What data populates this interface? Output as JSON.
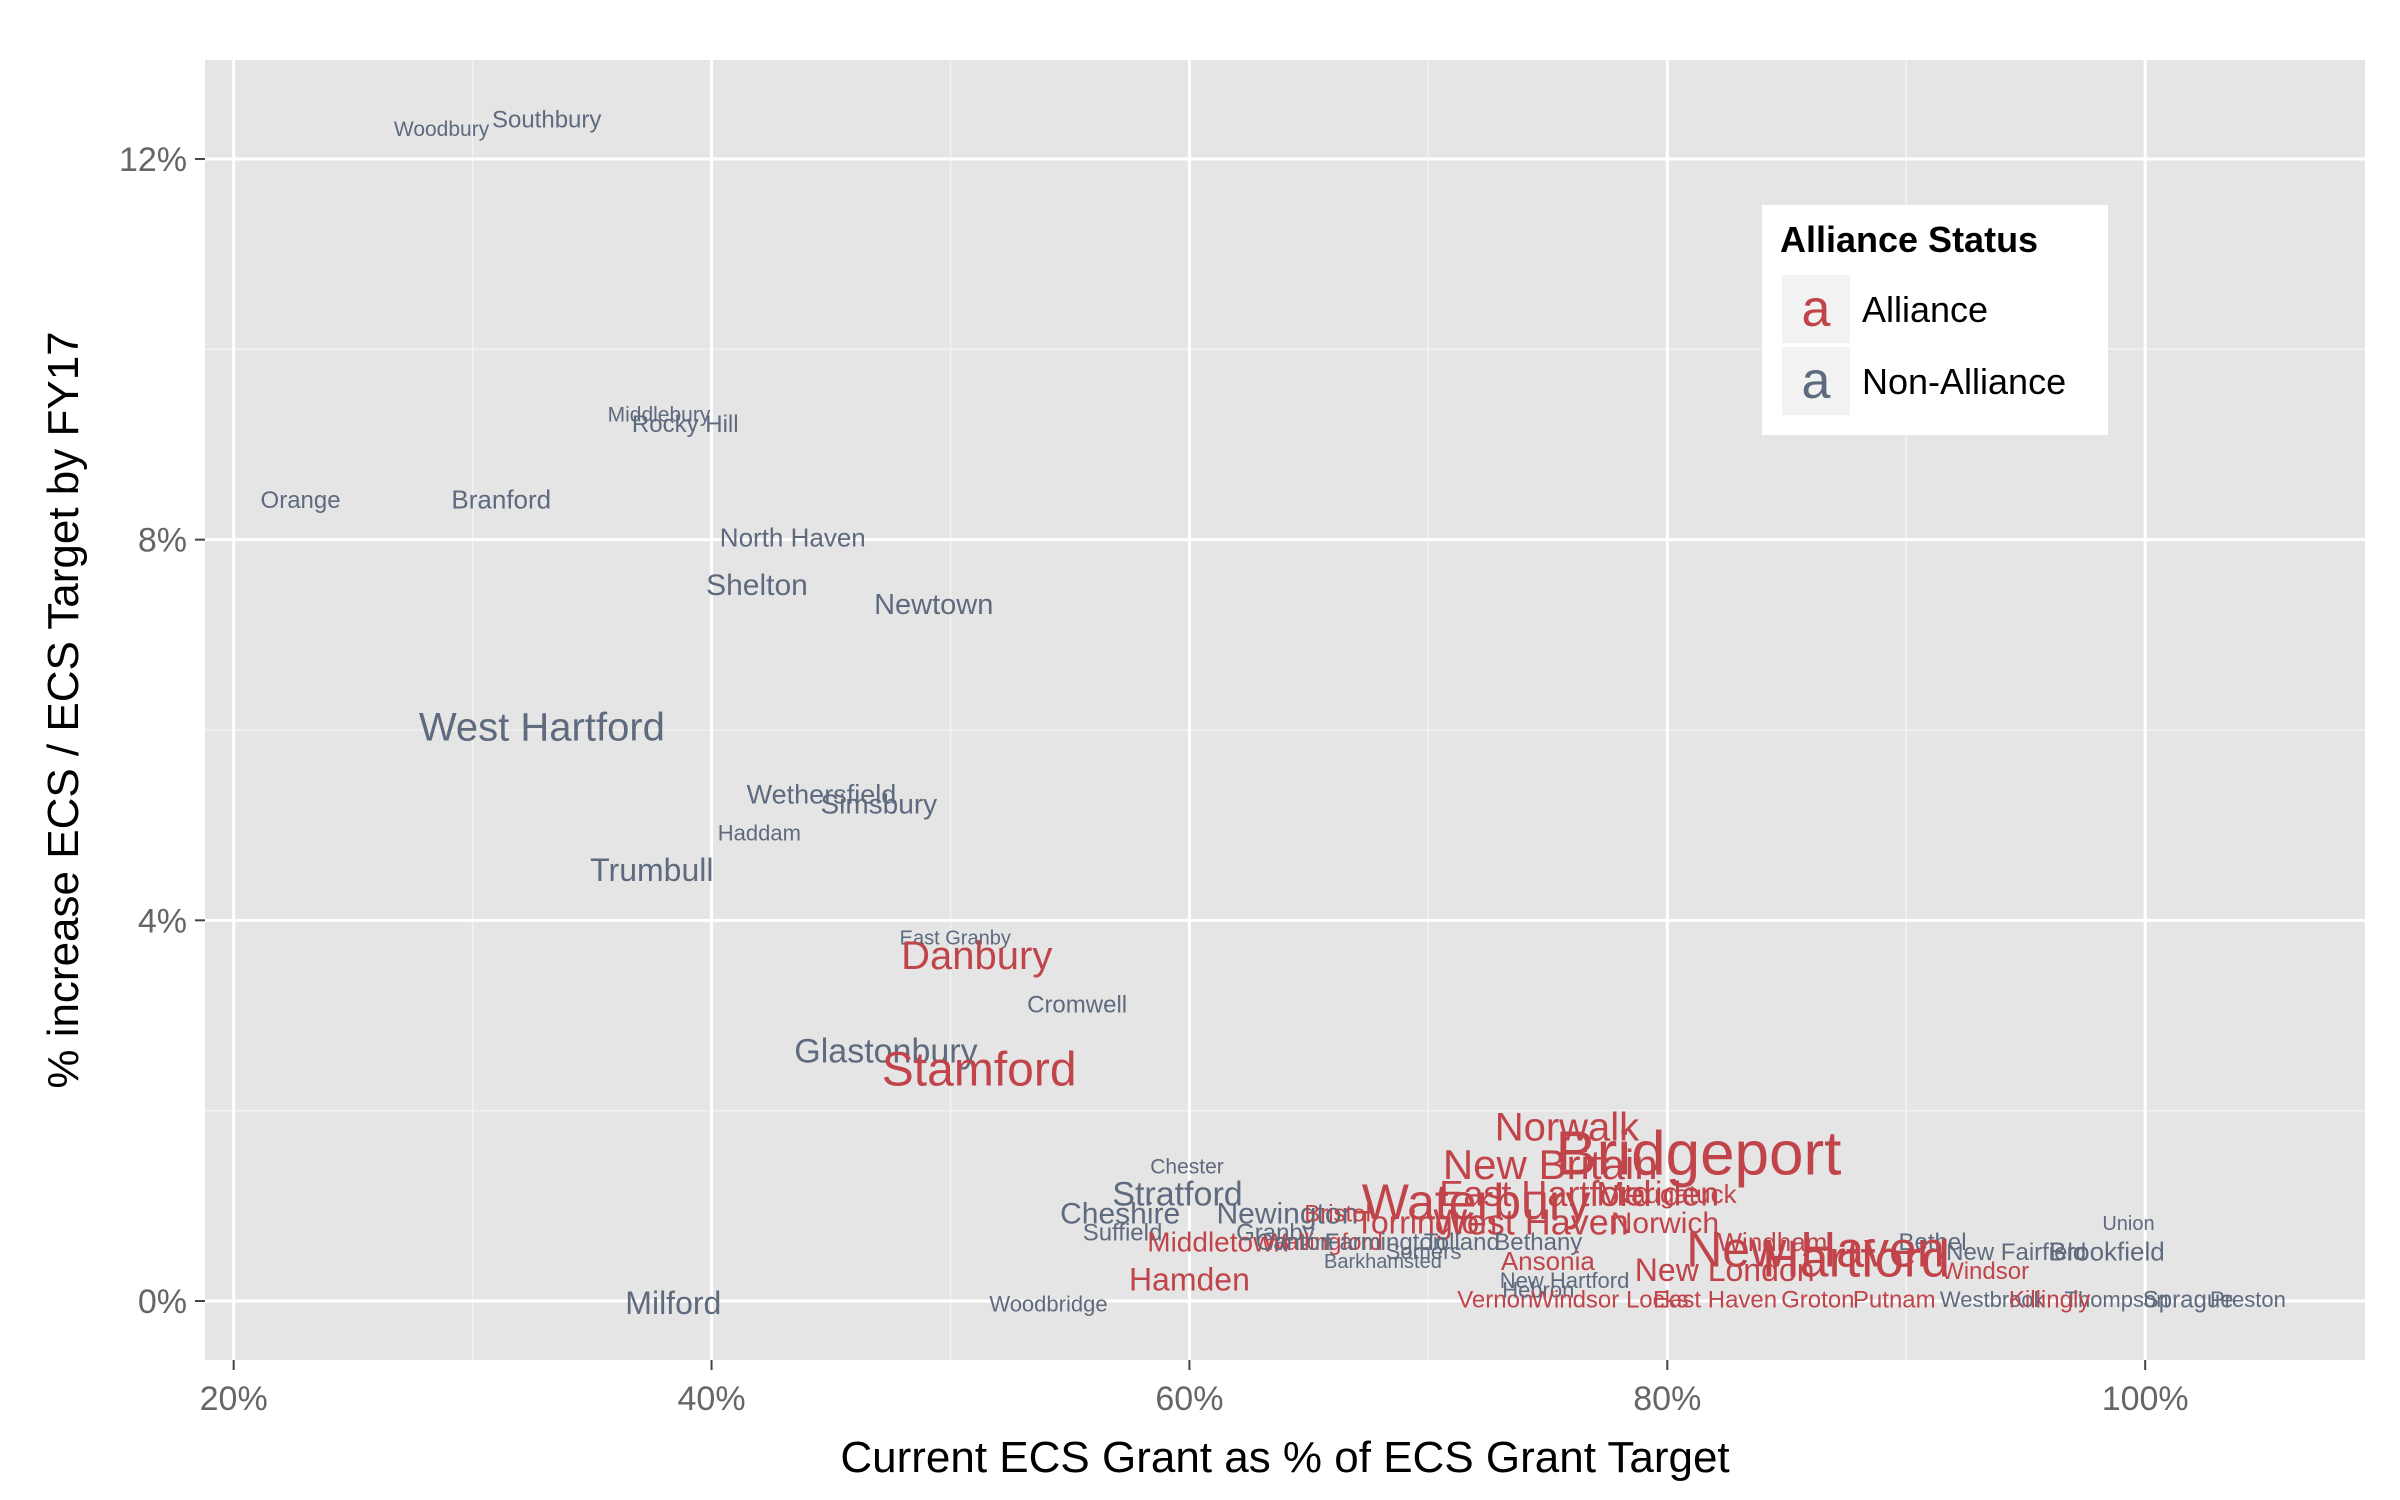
{
  "chart_data": {
    "type": "scatter",
    "title": "",
    "xlabel": "Current ECS Grant as % of ECS Grant Target",
    "ylabel": "% increase ECS / ECS Target by FY17",
    "xlim": [
      18.8,
      109.2
    ],
    "ylim": [
      -0.62,
      13.04
    ],
    "x_ticks": [
      20,
      40,
      60,
      80,
      100
    ],
    "x_tick_labels": [
      "20%",
      "40%",
      "60%",
      "80%",
      "100%"
    ],
    "y_ticks": [
      0,
      4,
      8,
      12
    ],
    "y_tick_labels": [
      "0%",
      "4%",
      "8%",
      "12%"
    ],
    "grid": true,
    "legend": {
      "title": "Alliance Status",
      "position": "top-right",
      "key_glyph": "a",
      "entries": [
        {
          "label": "Alliance",
          "color": "#c0444a"
        },
        {
          "label": "Non-Alliance",
          "color": "#5e6a7e"
        }
      ]
    },
    "colors": {
      "Alliance": "#c0444a",
      "Non-Alliance": "#5e6a7e"
    },
    "points": [
      {
        "label": "Southbury",
        "x": 33.1,
        "y": 12.4,
        "status": "Non-Alliance",
        "size": 24
      },
      {
        "label": "Woodbury",
        "x": 28.7,
        "y": 12.3,
        "status": "Non-Alliance",
        "size": 21
      },
      {
        "label": "Middlebury",
        "x": 37.8,
        "y": 9.3,
        "status": "Non-Alliance",
        "size": 21
      },
      {
        "label": "Rocky Hill",
        "x": 38.9,
        "y": 9.2,
        "status": "Non-Alliance",
        "size": 24
      },
      {
        "label": "Orange",
        "x": 22.8,
        "y": 8.4,
        "status": "Non-Alliance",
        "size": 24
      },
      {
        "label": "Branford",
        "x": 31.2,
        "y": 8.4,
        "status": "Non-Alliance",
        "size": 26
      },
      {
        "label": "North Haven",
        "x": 43.4,
        "y": 8.0,
        "status": "Non-Alliance",
        "size": 26
      },
      {
        "label": "Shelton",
        "x": 41.9,
        "y": 7.5,
        "status": "Non-Alliance",
        "size": 30
      },
      {
        "label": "Newtown",
        "x": 49.3,
        "y": 7.3,
        "status": "Non-Alliance",
        "size": 29
      },
      {
        "label": "West Hartford",
        "x": 32.9,
        "y": 6.0,
        "status": "Non-Alliance",
        "size": 40
      },
      {
        "label": "Wethersfield",
        "x": 44.6,
        "y": 5.3,
        "status": "Non-Alliance",
        "size": 27
      },
      {
        "label": "Simsbury",
        "x": 47.0,
        "y": 5.2,
        "status": "Non-Alliance",
        "size": 28
      },
      {
        "label": "Haddam",
        "x": 42.0,
        "y": 4.9,
        "status": "Non-Alliance",
        "size": 22
      },
      {
        "label": "Trumbull",
        "x": 37.5,
        "y": 4.5,
        "status": "Non-Alliance",
        "size": 32
      },
      {
        "label": "East Granby",
        "x": 50.2,
        "y": 3.8,
        "status": "Non-Alliance",
        "size": 20
      },
      {
        "label": "Danbury",
        "x": 51.1,
        "y": 3.6,
        "status": "Alliance",
        "size": 40
      },
      {
        "label": "Cromwell",
        "x": 55.3,
        "y": 3.1,
        "status": "Non-Alliance",
        "size": 24
      },
      {
        "label": "Glastonbury",
        "x": 47.3,
        "y": 2.6,
        "status": "Non-Alliance",
        "size": 34
      },
      {
        "label": "Stamford",
        "x": 51.2,
        "y": 2.4,
        "status": "Alliance",
        "size": 48
      },
      {
        "label": "Norwalk",
        "x": 75.8,
        "y": 1.8,
        "status": "Alliance",
        "size": 40
      },
      {
        "label": "Bridgeport",
        "x": 81.3,
        "y": 1.5,
        "status": "Alliance",
        "size": 62
      },
      {
        "label": "New Britain",
        "x": 75.1,
        "y": 1.4,
        "status": "Alliance",
        "size": 42
      },
      {
        "label": "Chester",
        "x": 59.9,
        "y": 1.4,
        "status": "Non-Alliance",
        "size": 21
      },
      {
        "label": "Stratford",
        "x": 59.5,
        "y": 1.1,
        "status": "Non-Alliance",
        "size": 34
      },
      {
        "label": "East Hartford",
        "x": 74.9,
        "y": 1.1,
        "status": "Alliance",
        "size": 36
      },
      {
        "label": "Meriden",
        "x": 79.6,
        "y": 1.1,
        "status": "Alliance",
        "size": 34
      },
      {
        "label": "Naugatuck",
        "x": 80.3,
        "y": 1.1,
        "status": "Alliance",
        "size": 26
      },
      {
        "label": "Waterbury",
        "x": 72.0,
        "y": 1.0,
        "status": "Alliance",
        "size": 50
      },
      {
        "label": "Cheshire",
        "x": 57.1,
        "y": 0.9,
        "status": "Non-Alliance",
        "size": 30
      },
      {
        "label": "Newington",
        "x": 64.1,
        "y": 0.9,
        "status": "Non-Alliance",
        "size": 30
      },
      {
        "label": "Bristol",
        "x": 66.2,
        "y": 0.9,
        "status": "Alliance",
        "size": 24
      },
      {
        "label": "Torrington",
        "x": 69.9,
        "y": 0.8,
        "status": "Alliance",
        "size": 32
      },
      {
        "label": "West Haven",
        "x": 74.3,
        "y": 0.8,
        "status": "Alliance",
        "size": 36
      },
      {
        "label": "Norwich",
        "x": 79.9,
        "y": 0.8,
        "status": "Alliance",
        "size": 30
      },
      {
        "label": "Suffield",
        "x": 57.2,
        "y": 0.7,
        "status": "Non-Alliance",
        "size": 24
      },
      {
        "label": "Middletown",
        "x": 61.2,
        "y": 0.6,
        "status": "Alliance",
        "size": 28
      },
      {
        "label": "Granby",
        "x": 63.6,
        "y": 0.7,
        "status": "Non-Alliance",
        "size": 24
      },
      {
        "label": "Wallingford",
        "x": 65.6,
        "y": 0.6,
        "status": "Alliance",
        "size": 24
      },
      {
        "label": "Canton",
        "x": 64.4,
        "y": 0.6,
        "status": "Non-Alliance",
        "size": 24
      },
      {
        "label": "Farmington",
        "x": 68.2,
        "y": 0.6,
        "status": "Non-Alliance",
        "size": 24
      },
      {
        "label": "Tolland",
        "x": 71.4,
        "y": 0.6,
        "status": "Non-Alliance",
        "size": 24
      },
      {
        "label": "Bethany",
        "x": 74.6,
        "y": 0.6,
        "status": "Non-Alliance",
        "size": 24
      },
      {
        "label": "Bethel",
        "x": 91.1,
        "y": 0.6,
        "status": "Non-Alliance",
        "size": 24
      },
      {
        "label": "New Fairfield",
        "x": 94.6,
        "y": 0.5,
        "status": "Non-Alliance",
        "size": 24
      },
      {
        "label": "Brookfield",
        "x": 98.4,
        "y": 0.5,
        "status": "Non-Alliance",
        "size": 26
      },
      {
        "label": "Union",
        "x": 99.3,
        "y": 0.8,
        "status": "Non-Alliance",
        "size": 20
      },
      {
        "label": "Windham",
        "x": 84.4,
        "y": 0.6,
        "status": "Alliance",
        "size": 26
      },
      {
        "label": "Ansonia",
        "x": 75.0,
        "y": 0.4,
        "status": "Alliance",
        "size": 26
      },
      {
        "label": "Somers",
        "x": 69.8,
        "y": 0.5,
        "status": "Non-Alliance",
        "size": 22
      },
      {
        "label": "Barkhamsted",
        "x": 68.1,
        "y": 0.4,
        "status": "Non-Alliance",
        "size": 20
      },
      {
        "label": "New Haven",
        "x": 86.2,
        "y": 0.5,
        "status": "Alliance",
        "size": 50
      },
      {
        "label": "New London",
        "x": 82.4,
        "y": 0.3,
        "status": "Alliance",
        "size": 32
      },
      {
        "label": "Hartford",
        "x": 87.9,
        "y": 0.4,
        "status": "Alliance",
        "size": 52
      },
      {
        "label": "Windsor",
        "x": 93.3,
        "y": 0.3,
        "status": "Alliance",
        "size": 24
      },
      {
        "label": "Hamden",
        "x": 60.0,
        "y": 0.2,
        "status": "Alliance",
        "size": 32
      },
      {
        "label": "New Hartford",
        "x": 75.7,
        "y": 0.2,
        "status": "Non-Alliance",
        "size": 22
      },
      {
        "label": "Vernon",
        "x": 72.8,
        "y": 0.0,
        "status": "Alliance",
        "size": 24
      },
      {
        "label": "Hebron",
        "x": 74.6,
        "y": 0.1,
        "status": "Non-Alliance",
        "size": 22
      },
      {
        "label": "Windsor Locks",
        "x": 77.6,
        "y": 0.0,
        "status": "Alliance",
        "size": 24
      },
      {
        "label": "East Haven",
        "x": 82.0,
        "y": 0.0,
        "status": "Alliance",
        "size": 24
      },
      {
        "label": "Groton",
        "x": 86.3,
        "y": 0.0,
        "status": "Alliance",
        "size": 24
      },
      {
        "label": "Putnam",
        "x": 89.5,
        "y": 0.0,
        "status": "Alliance",
        "size": 24
      },
      {
        "label": "Westbrook",
        "x": 93.6,
        "y": 0.0,
        "status": "Non-Alliance",
        "size": 22
      },
      {
        "label": "Thompson",
        "x": 98.8,
        "y": 0.0,
        "status": "Non-Alliance",
        "size": 22
      },
      {
        "label": "Killingly",
        "x": 96.0,
        "y": 0.0,
        "status": "Alliance",
        "size": 24
      },
      {
        "label": "Sprague",
        "x": 101.8,
        "y": 0.0,
        "status": "Non-Alliance",
        "size": 24
      },
      {
        "label": "Preston",
        "x": 104.3,
        "y": 0.0,
        "status": "Non-Alliance",
        "size": 22
      },
      {
        "label": "Milford",
        "x": 38.4,
        "y": -0.05,
        "status": "Non-Alliance",
        "size": 32
      },
      {
        "label": "Woodbridge",
        "x": 54.1,
        "y": -0.05,
        "status": "Non-Alliance",
        "size": 22
      }
    ]
  }
}
